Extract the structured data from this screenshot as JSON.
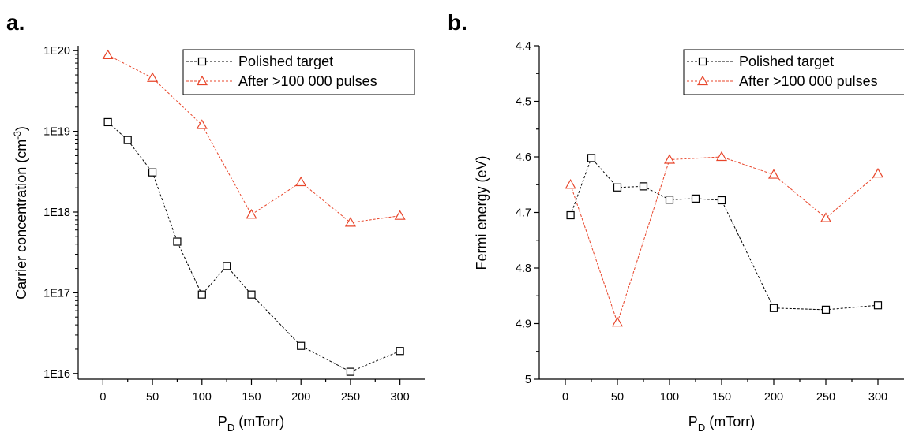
{
  "chart_data": [
    {
      "panel_label": "a.",
      "type": "line",
      "xlabel": "P",
      "xlabel_sub": "D",
      "xlabel_unit": " (mTorr)",
      "ylabel": "Carrier concentration (cm",
      "ylabel_sup": "-3",
      "ylabel_end": ")",
      "xlim": [
        -25,
        325
      ],
      "ylim": [
        8500000000000000.0,
        1.15e+20
      ],
      "yscale": "log",
      "x_ticks": [
        0,
        50,
        100,
        150,
        200,
        250,
        300
      ],
      "x_ticks_minor": [
        25,
        75,
        125,
        175,
        225,
        275
      ],
      "y_ticks": [
        1e+16,
        1e+17,
        1e+18,
        1e+19,
        1e+20
      ],
      "y_tick_labels": [
        "1E16",
        "1E17",
        "1E18",
        "1E19",
        "1E20"
      ],
      "legend_position": "top-right",
      "series": [
        {
          "name": "Polished target",
          "color": "#000000",
          "marker": "square",
          "x": [
            5,
            25,
            50,
            75,
            100,
            125,
            150,
            200,
            250,
            300
          ],
          "y": [
            1.3e+19,
            7.8e+18,
            3.1e+18,
            4.3e+17,
            9.5e+16,
            2.15e+17,
            9.5e+16,
            2.2e+16,
            1.05e+16,
            1.9e+16
          ]
        },
        {
          "name": "After >100 000 pulses",
          "color": "#e8452a",
          "marker": "triangle",
          "x": [
            5,
            50,
            100,
            150,
            200,
            250,
            300
          ],
          "y": [
            8.8e+19,
            4.6e+19,
            1.2e+19,
            9.3e+17,
            2.35e+18,
            7.4e+17,
            9e+17
          ]
        }
      ]
    },
    {
      "panel_label": "b.",
      "type": "line",
      "xlabel": "P",
      "xlabel_sub": "D",
      "xlabel_unit": " (mTorr)",
      "ylabel": "Fermi energy (eV)",
      "xlim": [
        -25,
        325
      ],
      "ylim": [
        5.0,
        4.4
      ],
      "yscale": "linear",
      "y_inverted": true,
      "x_ticks": [
        0,
        50,
        100,
        150,
        200,
        250,
        300
      ],
      "x_ticks_minor": [
        25,
        75,
        125,
        175,
        225,
        275
      ],
      "y_ticks": [
        4.4,
        4.5,
        4.6,
        4.7,
        4.8,
        4.9,
        5.0
      ],
      "y_tick_labels": [
        "4.4",
        "4.5",
        "4.6",
        "4.7",
        "4.8",
        "4.9",
        "5"
      ],
      "y_ticks_minor": [
        4.45,
        4.55,
        4.65,
        4.75,
        4.85,
        4.95
      ],
      "legend_position": "top-right",
      "series": [
        {
          "name": "Polished target",
          "color": "#000000",
          "marker": "square",
          "x": [
            5,
            25,
            50,
            75,
            100,
            125,
            150,
            200,
            250,
            300
          ],
          "y": [
            4.705,
            4.602,
            4.655,
            4.653,
            4.677,
            4.675,
            4.678,
            4.872,
            4.875,
            4.867
          ]
        },
        {
          "name": "After >100 000 pulses",
          "color": "#e8452a",
          "marker": "triangle",
          "x": [
            5,
            50,
            100,
            150,
            200,
            250,
            300
          ],
          "y": [
            4.65,
            4.898,
            4.605,
            4.6,
            4.632,
            4.71,
            4.63
          ]
        }
      ]
    }
  ]
}
